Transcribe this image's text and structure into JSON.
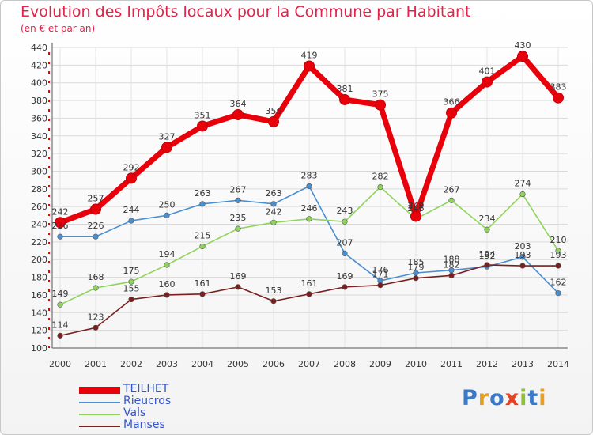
{
  "title": "Evolution des Impôts locaux pour la Commune par Habitant",
  "subtitle": "(en € et par an)",
  "logo_text": "Proxiti",
  "chart_data": {
    "type": "line",
    "title": "Evolution des Impôts locaux pour la Commune par Habitant",
    "subtitle": "(en € et par an)",
    "xlabel": "",
    "ylabel": "",
    "ylim": [
      100,
      440
    ],
    "ytick_step": 20,
    "grid": true,
    "legend_position": "bottom-left",
    "x": [
      "2000",
      "2001",
      "2002",
      "2003",
      "2004",
      "2005",
      "2006",
      "2007",
      "2008",
      "2009",
      "2010",
      "2011",
      "2012",
      "2013",
      "2014"
    ],
    "series": [
      {
        "name": "TEILHET",
        "color": "#e8000b",
        "bold": true,
        "values": [
          242,
          257,
          292,
          327,
          351,
          364,
          356,
          419,
          381,
          375,
          249,
          366,
          401,
          430,
          383
        ]
      },
      {
        "name": "Rieucros",
        "color": "#4a8fd0",
        "bold": false,
        "values": [
          226,
          226,
          244,
          250,
          263,
          267,
          263,
          283,
          207,
          176,
          185,
          188,
          192,
          203,
          162
        ]
      },
      {
        "name": "Vals",
        "color": "#8fd45a",
        "bold": false,
        "values": [
          149,
          168,
          175,
          194,
          215,
          235,
          242,
          246,
          243,
          282,
          246,
          267,
          234,
          274,
          210
        ]
      },
      {
        "name": "Manses",
        "color": "#7a1f1f",
        "bold": false,
        "values": [
          114,
          123,
          155,
          160,
          161,
          169,
          153,
          161,
          169,
          171,
          179,
          182,
          194,
          193,
          193
        ]
      }
    ]
  }
}
